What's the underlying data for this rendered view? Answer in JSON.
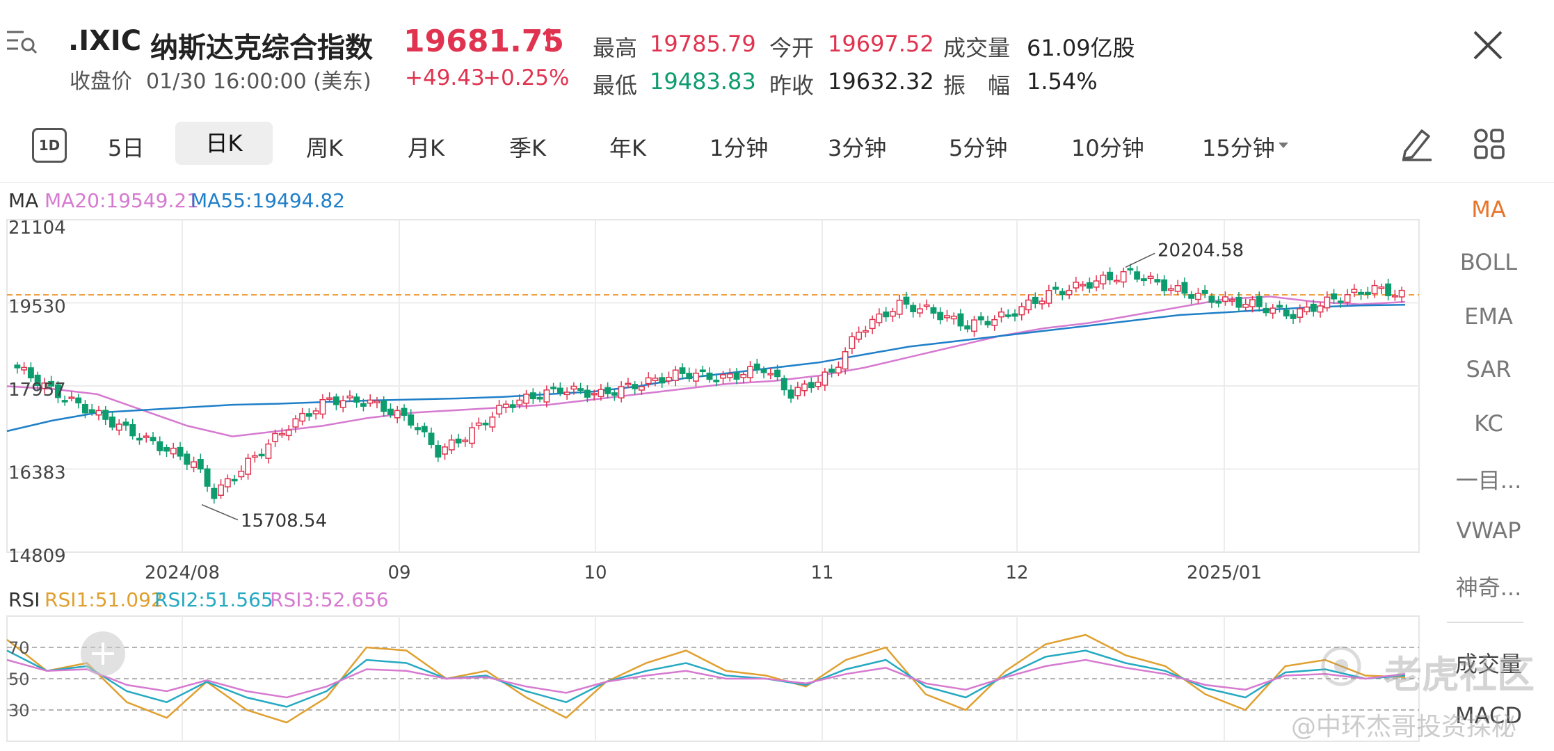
{
  "header": {
    "menu_icon": "menu-search-icon",
    "symbol": ".IXIC",
    "name": "纳斯达克综合指数",
    "price": "19681.75",
    "arrow": "↑",
    "change": "+49.43",
    "change_pct": "+0.25%",
    "status_label": "收盘价",
    "status_time": "01/30 16:00:00 (美东)",
    "stats": [
      {
        "label": "最高",
        "value": "19785.79",
        "color": "red"
      },
      {
        "label": "今开",
        "value": "19697.52",
        "color": "red"
      },
      {
        "label": "成交量",
        "value": "61.09亿股",
        "color": "dark"
      },
      {
        "label": "最低",
        "value": "19483.83",
        "color": "green"
      },
      {
        "label": "昨收",
        "value": "19632.32",
        "color": "dark"
      },
      {
        "label": "振　幅",
        "value": "1.54%",
        "color": "dark"
      }
    ],
    "close_icon": "close-icon"
  },
  "tabs": {
    "icon_1d": "1D",
    "items": [
      "5日",
      "日K",
      "周K",
      "月K",
      "季K",
      "年K",
      "1分钟",
      "3分钟",
      "5分钟",
      "10分钟",
      "15分钟"
    ],
    "active": "日K",
    "dropdown_icon": "caret-down-icon",
    "pen_icon": "pen-icon",
    "grid_icon": "grid-icon"
  },
  "sidebar": {
    "items": [
      "MA",
      "BOLL",
      "EMA",
      "SAR",
      "KC",
      "一目...",
      "VWAP",
      "神奇...",
      "成交量",
      "MACD"
    ],
    "active": "MA"
  },
  "indicators": {
    "ma_title": "MA",
    "ma20": "MA20:19549.21",
    "ma55": "MA55:19494.82",
    "rsi_title": "RSI",
    "rsi1": "RSI1:51.092",
    "rsi2": "RSI2:51.565",
    "rsi3": "RSI3:52.656"
  },
  "watermark": {
    "brand": "老虎社区",
    "author": "@中环杰哥投资探秘"
  },
  "colors": {
    "up": "#e0334f",
    "down": "#0d9c6e",
    "ma20": "#d67ad0",
    "ma55": "#1f7fc8",
    "rsi1": "#e0a030",
    "rsi2": "#25a9c2",
    "rsi3": "#d67ad0",
    "ref_line": "#f0a040"
  },
  "chart_data": [
    {
      "type": "candlestick",
      "y_ticks": [
        21104,
        19530,
        17957,
        16383,
        14809
      ],
      "ylim": [
        14809,
        21104
      ],
      "x_ticks": [
        "2024/08",
        "09",
        "10",
        "11",
        "12",
        "2025/01"
      ],
      "reference_price": 19681.75,
      "high_annotation": {
        "label": "20204.58",
        "value": 20204.58
      },
      "low_annotation": {
        "label": "15708.54",
        "value": 15708.54
      },
      "series": [
        {
          "name": "MA20",
          "values_approx": [
            17950,
            17900,
            17800,
            17500,
            17200,
            17000,
            17100,
            17200,
            17350,
            17450,
            17500,
            17550,
            17600,
            17700,
            17800,
            17900,
            18000,
            18050,
            18150,
            18300,
            18500,
            18700,
            18900,
            19050,
            19150,
            19300,
            19450,
            19600,
            19650,
            19550,
            19500,
            19549
          ]
        },
        {
          "name": "MA55",
          "values_approx": [
            17100,
            17300,
            17450,
            17500,
            17550,
            17600,
            17620,
            17650,
            17680,
            17700,
            17720,
            17750,
            17800,
            17850,
            17950,
            18100,
            18200,
            18300,
            18400,
            18550,
            18700,
            18800,
            18900,
            19000,
            19100,
            19200,
            19300,
            19350,
            19400,
            19450,
            19480,
            19495
          ]
        }
      ]
    },
    {
      "type": "line",
      "yticks": [
        70,
        50,
        30
      ],
      "ylim": [
        10,
        90
      ],
      "series": [
        {
          "name": "RSI1",
          "values_approx": [
            75,
            55,
            60,
            35,
            25,
            48,
            30,
            22,
            38,
            70,
            68,
            50,
            55,
            38,
            25,
            48,
            60,
            68,
            55,
            52,
            45,
            62,
            70,
            40,
            30,
            55,
            72,
            78,
            65,
            58,
            40,
            30,
            58,
            62,
            52,
            51
          ]
        },
        {
          "name": "RSI2",
          "values_approx": [
            68,
            55,
            58,
            42,
            35,
            48,
            38,
            32,
            42,
            62,
            60,
            50,
            52,
            42,
            35,
            48,
            55,
            60,
            52,
            50,
            46,
            56,
            62,
            45,
            38,
            52,
            64,
            68,
            60,
            55,
            44,
            38,
            54,
            56,
            50,
            52
          ]
        },
        {
          "name": "RSI3",
          "values_approx": [
            62,
            55,
            56,
            46,
            42,
            49,
            42,
            38,
            45,
            56,
            55,
            50,
            51,
            45,
            41,
            48,
            52,
            55,
            50,
            50,
            47,
            53,
            57,
            47,
            43,
            51,
            58,
            62,
            57,
            53,
            46,
            43,
            52,
            53,
            50,
            53
          ]
        }
      ]
    }
  ]
}
